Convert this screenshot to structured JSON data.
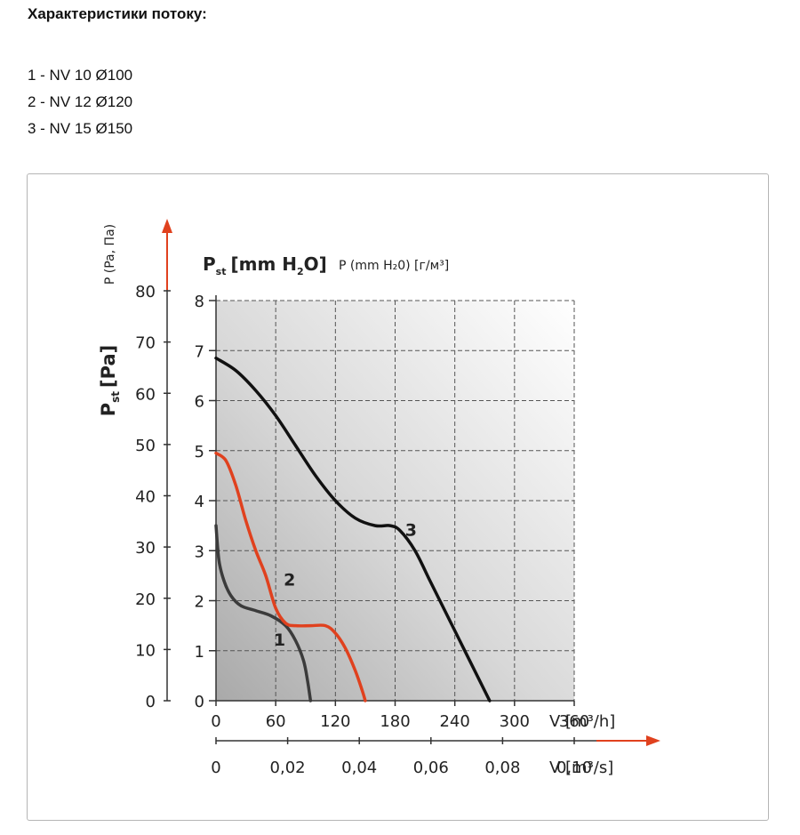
{
  "heading": "Характеристики потоку:",
  "models": [
    "1 - NV 10 Ø100",
    "2 - NV 12 Ø120",
    "3 - NV 15 Ø150"
  ],
  "chart_data": {
    "type": "line",
    "y_title_outer_main": "P",
    "y_title_outer_sub": "st",
    "y_title_outer_unit": "[Pa]",
    "y_title_outer_alt": "P (Pa, Па)",
    "y_title_inner_main": "P",
    "y_title_inner_sub": "st",
    "y_title_inner_unit_a": "[mm H",
    "y_title_inner_unit_sub": "2",
    "y_title_inner_unit_b": "O]",
    "y_title_inner_alt": "P (mm H₂0) [г/м³]",
    "x_label_h": "V [m³/h]",
    "x_label_s": "V [m³/s]",
    "y_outer_ticks": [
      "0",
      "10",
      "20",
      "30",
      "40",
      "50",
      "60",
      "70",
      "80"
    ],
    "y_inner_ticks": [
      "0",
      "1",
      "2",
      "3",
      "4",
      "5",
      "6",
      "7",
      "8"
    ],
    "x_ticks_h": [
      "0",
      "60",
      "120",
      "180",
      "240",
      "300",
      "360"
    ],
    "x_ticks_s": [
      "0",
      "0,02",
      "0,04",
      "0,06",
      "0,08",
      "0,10"
    ],
    "xlim_h": [
      0,
      360
    ],
    "ylim_mm": [
      0,
      8
    ],
    "grid": true,
    "series": [
      {
        "name": "1",
        "color": "#3b3b3b",
        "points": [
          [
            0,
            3.5
          ],
          [
            3,
            2.8
          ],
          [
            8,
            2.4
          ],
          [
            15,
            2.1
          ],
          [
            25,
            1.9
          ],
          [
            40,
            1.8
          ],
          [
            55,
            1.7
          ],
          [
            70,
            1.5
          ],
          [
            80,
            1.2
          ],
          [
            88,
            0.8
          ],
          [
            92,
            0.4
          ],
          [
            95,
            0
          ]
        ]
      },
      {
        "name": "2",
        "color": "#e0411e",
        "points": [
          [
            0,
            4.95
          ],
          [
            10,
            4.8
          ],
          [
            20,
            4.3
          ],
          [
            30,
            3.6
          ],
          [
            40,
            3.0
          ],
          [
            50,
            2.5
          ],
          [
            60,
            1.85
          ],
          [
            70,
            1.55
          ],
          [
            80,
            1.5
          ],
          [
            95,
            1.5
          ],
          [
            110,
            1.5
          ],
          [
            120,
            1.35
          ],
          [
            130,
            1.05
          ],
          [
            140,
            0.6
          ],
          [
            147,
            0.2
          ],
          [
            150,
            0
          ]
        ]
      },
      {
        "name": "3",
        "color": "#111111",
        "points": [
          [
            0,
            6.85
          ],
          [
            20,
            6.6
          ],
          [
            40,
            6.2
          ],
          [
            60,
            5.7
          ],
          [
            80,
            5.1
          ],
          [
            100,
            4.5
          ],
          [
            120,
            4.0
          ],
          [
            140,
            3.65
          ],
          [
            160,
            3.5
          ],
          [
            175,
            3.5
          ],
          [
            185,
            3.4
          ],
          [
            200,
            3.0
          ],
          [
            215,
            2.4
          ],
          [
            230,
            1.8
          ],
          [
            245,
            1.2
          ],
          [
            260,
            0.6
          ],
          [
            270,
            0.2
          ],
          [
            275,
            0
          ]
        ]
      }
    ]
  }
}
